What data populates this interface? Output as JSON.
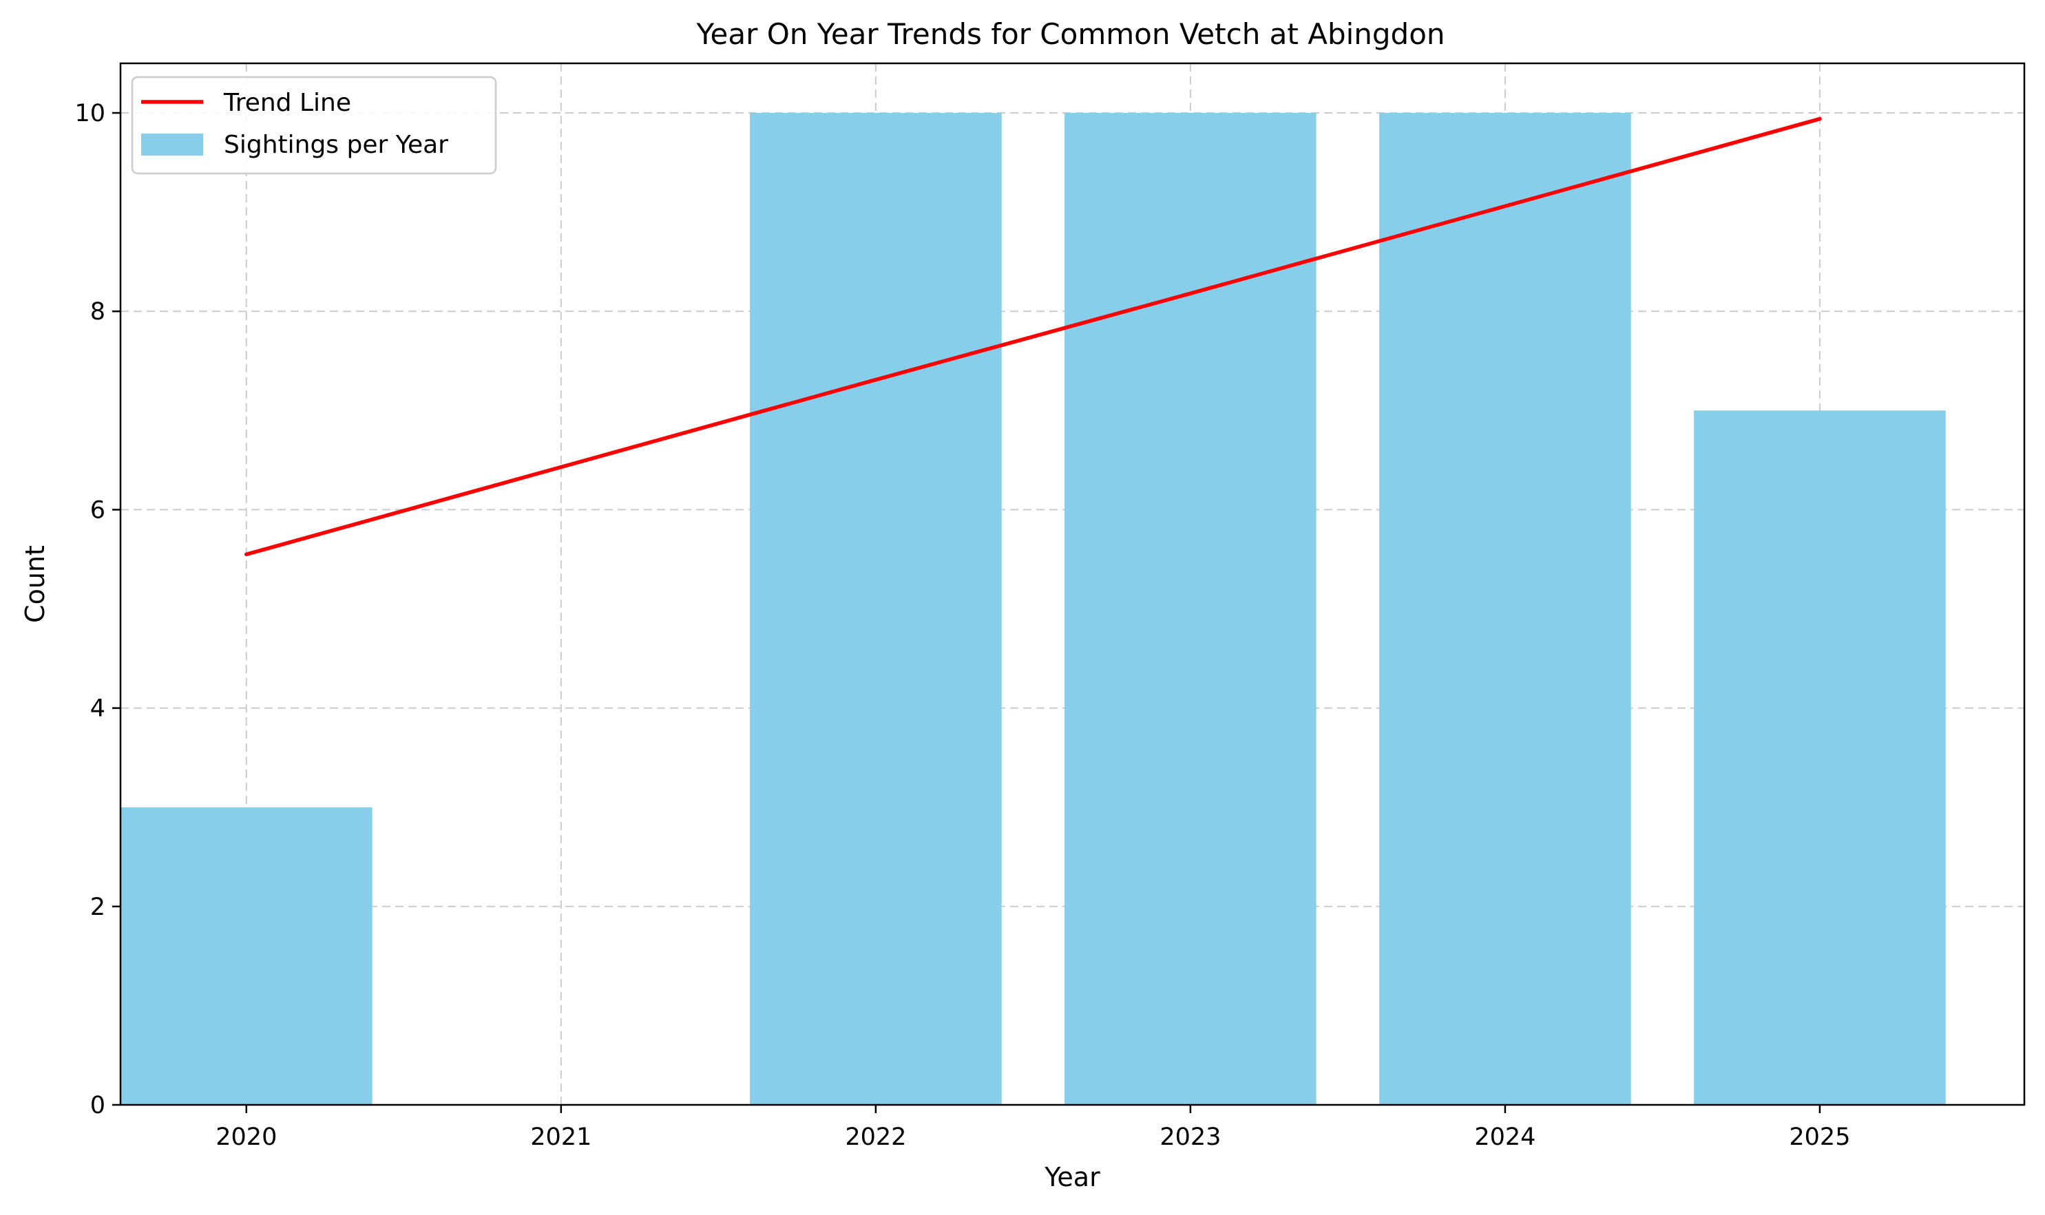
{
  "chart_data": {
    "type": "bar",
    "title": "Year On Year Trends for Common Vetch at Abingdon",
    "xlabel": "Year",
    "ylabel": "Count",
    "categories": [
      "2020",
      "2021",
      "2022",
      "2023",
      "2024",
      "2025"
    ],
    "x": [
      2020,
      2021,
      2022,
      2023,
      2024,
      2025
    ],
    "series": [
      {
        "name": "Sightings per Year",
        "kind": "bar",
        "color": "#87ceeb",
        "values": [
          3,
          0,
          10,
          10,
          10,
          7
        ]
      },
      {
        "name": "Trend Line",
        "kind": "line",
        "color": "#ff0000",
        "values": [
          5.55,
          6.43,
          7.31,
          8.18,
          9.06,
          9.94
        ]
      }
    ],
    "yticks": [
      0,
      2,
      4,
      6,
      8,
      10
    ],
    "ylim": [
      0,
      10.5
    ],
    "xlim": [
      2019.6,
      2025.65
    ],
    "grid": true,
    "legend": {
      "position": "top-left",
      "entries": [
        "Trend Line",
        "Sightings per Year"
      ]
    }
  }
}
